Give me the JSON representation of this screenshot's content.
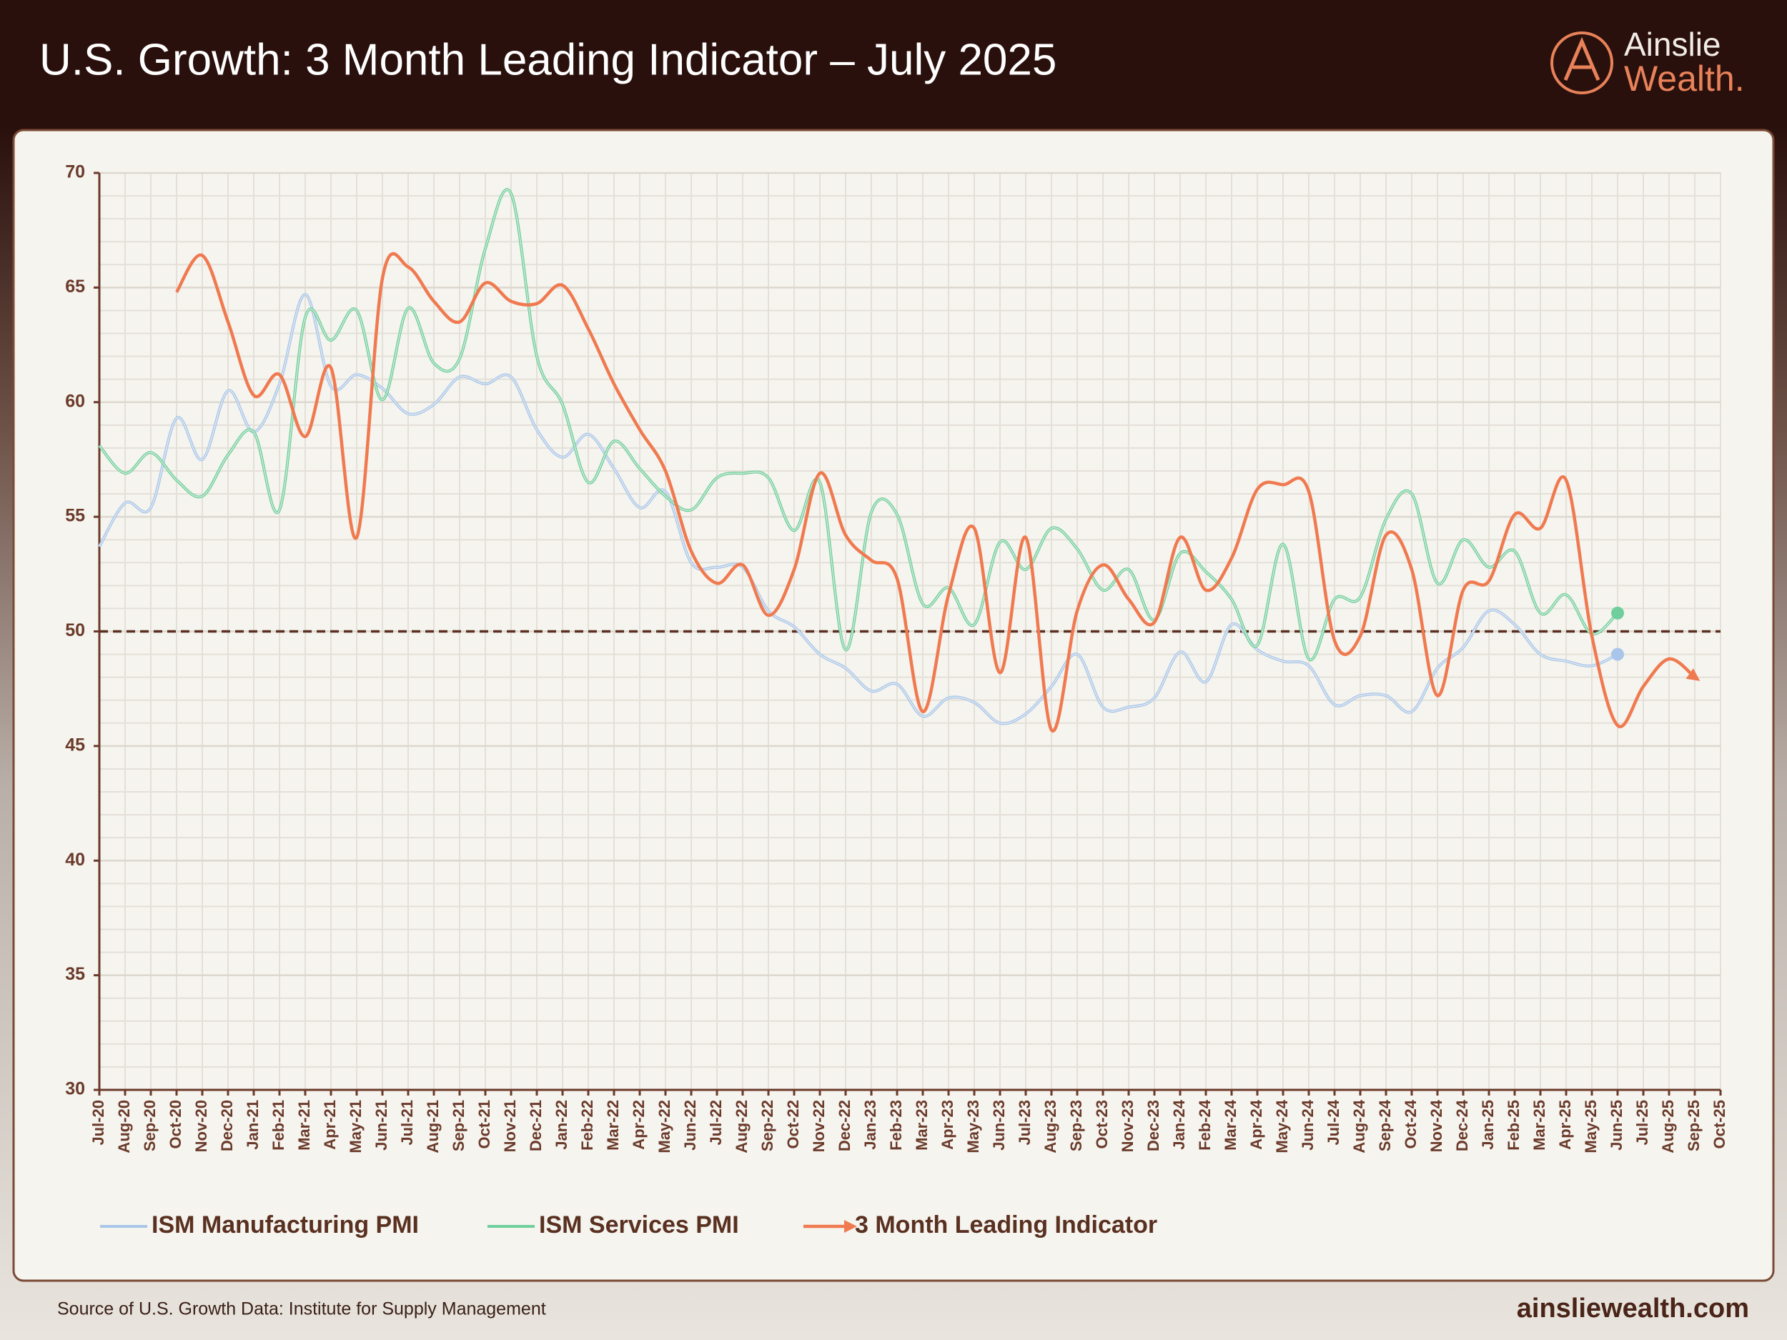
{
  "brand": [
    "Ainslie",
    "Wealth."
  ],
  "source": "Source of U.S. Growth Data: Institute for Supply Management",
  "website": "ainsliewealth.com",
  "chart_data": {
    "type": "line",
    "title": "U.S. Growth: 3 Month Leading Indicator – July 2025",
    "categories": [
      "Jul-20",
      "Aug-20",
      "Sep-20",
      "Oct-20",
      "Nov-20",
      "Dec-20",
      "Jan-21",
      "Feb-21",
      "Mar-21",
      "Apr-21",
      "May-21",
      "Jun-21",
      "Jul-21",
      "Aug-21",
      "Sep-21",
      "Oct-21",
      "Nov-21",
      "Dec-21",
      "Jan-22",
      "Feb-22",
      "Mar-22",
      "Apr-22",
      "May-22",
      "Jun-22",
      "Jul-22",
      "Aug-22",
      "Sep-22",
      "Oct-22",
      "Nov-22",
      "Dec-22",
      "Jan-23",
      "Feb-23",
      "Mar-23",
      "Apr-23",
      "May-23",
      "Jun-23",
      "Jul-23",
      "Aug-23",
      "Sep-23",
      "Oct-23",
      "Nov-23",
      "Dec-23",
      "Jan-24",
      "Feb-24",
      "Mar-24",
      "Apr-24",
      "May-24",
      "Jun-24",
      "Jul-24",
      "Aug-24",
      "Sep-24",
      "Oct-24",
      "Nov-24",
      "Dec-24",
      "Jan-25",
      "Feb-25",
      "Mar-25",
      "Apr-25",
      "May-25",
      "Jun-25",
      "Jul-25",
      "Aug-25",
      "Sep-25",
      "Oct-25"
    ],
    "series": [
      {
        "name": "ISM Manufacturing PMI",
        "color": "#a9c6ea",
        "values": [
          53.7,
          55.6,
          55.4,
          59.3,
          57.5,
          60.5,
          58.7,
          60.8,
          64.7,
          60.7,
          61.2,
          60.6,
          59.5,
          59.9,
          61.1,
          60.8,
          61.1,
          58.8,
          57.6,
          58.6,
          57.1,
          55.4,
          56.1,
          53.0,
          52.8,
          52.8,
          50.9,
          50.2,
          49.0,
          48.4,
          47.4,
          47.7,
          46.3,
          47.1,
          46.9,
          46.0,
          46.4,
          47.6,
          49.0,
          46.7,
          46.7,
          47.1,
          49.1,
          47.8,
          50.3,
          49.2,
          48.7,
          48.5,
          46.8,
          47.2,
          47.2,
          46.5,
          48.4,
          49.3,
          50.9,
          50.3,
          49.0,
          48.7,
          48.5,
          49.0,
          null,
          null,
          null,
          null
        ]
      },
      {
        "name": "ISM Services PMI",
        "color": "#6fcf9c",
        "values": [
          58.1,
          56.9,
          57.8,
          56.6,
          55.9,
          57.7,
          58.7,
          55.3,
          63.7,
          62.7,
          64.0,
          60.1,
          64.1,
          61.7,
          61.9,
          66.7,
          69.1,
          62.0,
          59.9,
          56.5,
          58.3,
          57.1,
          55.9,
          55.3,
          56.7,
          56.9,
          56.7,
          54.4,
          56.5,
          49.2,
          55.2,
          55.1,
          51.2,
          51.9,
          50.3,
          53.9,
          52.7,
          54.5,
          53.6,
          51.8,
          52.7,
          50.5,
          53.4,
          52.6,
          51.4,
          49.4,
          53.8,
          48.8,
          51.4,
          51.5,
          54.9,
          56.0,
          52.1,
          54.0,
          52.8,
          53.5,
          50.8,
          51.6,
          49.9,
          50.8,
          null,
          null,
          null,
          null
        ]
      },
      {
        "name": "3 Month Leading Indicator",
        "color": "#f07a50",
        "values": [
          null,
          null,
          null,
          64.8,
          66.4,
          63.5,
          60.3,
          61.2,
          58.5,
          61.5,
          54.1,
          65.4,
          65.9,
          64.4,
          63.5,
          65.2,
          64.4,
          64.3,
          65.1,
          63.2,
          60.8,
          58.8,
          57.0,
          53.5,
          52.1,
          52.9,
          50.7,
          52.7,
          56.9,
          54.2,
          53.1,
          52.3,
          46.5,
          51.6,
          54.5,
          48.2,
          54.1,
          45.7,
          50.9,
          52.9,
          51.4,
          50.4,
          54.1,
          51.8,
          53.2,
          56.2,
          56.4,
          56.1,
          49.6,
          49.8,
          54.2,
          52.7,
          47.2,
          51.8,
          52.2,
          55.1,
          54.5,
          56.6,
          49.8,
          45.9,
          47.6,
          48.8,
          48.0,
          null
        ]
      }
    ],
    "ylim": [
      30,
      70
    ],
    "yticks": [
      30,
      35,
      40,
      45,
      50,
      55,
      60,
      65,
      70
    ],
    "reference_line": 50,
    "grid": true,
    "legend": "bottom"
  }
}
